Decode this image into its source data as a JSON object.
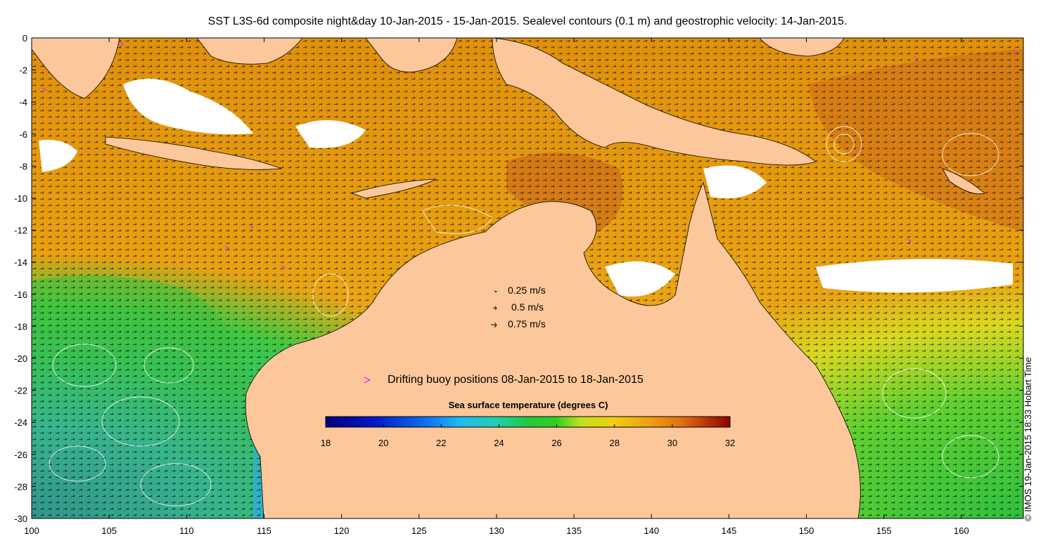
{
  "title": "SST L3S-6d composite night&day 10-Jan-2015 - 15-Jan-2015. Sealevel contours (0.1 m) and geostrophic velocity: 14-Jan-2015.",
  "credit": "© IMOS 19-Jan-2015 18:33 Hobart Time",
  "axes": {
    "x_ticks": [
      "100",
      "105",
      "110",
      "115",
      "120",
      "125",
      "130",
      "135",
      "140",
      "145",
      "150",
      "155",
      "160"
    ],
    "y_ticks": [
      "0",
      "-2",
      "-4",
      "-6",
      "-8",
      "-10",
      "-12",
      "-14",
      "-16",
      "-18",
      "-20",
      "-22",
      "-24",
      "-26",
      "-28",
      "-30"
    ],
    "lon_range": [
      100,
      164
    ],
    "lat_range": [
      -30,
      0
    ]
  },
  "velocity_legend": [
    {
      "label": "0.25 m/s"
    },
    {
      "label": "0.5 m/s"
    },
    {
      "label": "0.75 m/s"
    }
  ],
  "buoy_legend": {
    "symbol": ">",
    "label": "Drifting buoy positions 08-Jan-2015 to 18-Jan-2015",
    "color": "#d83cd8"
  },
  "colorbar": {
    "title": "Sea surface temperature (degrees C)",
    "ticks": [
      "18",
      "20",
      "22",
      "24",
      "26",
      "28",
      "30",
      "32"
    ],
    "range": [
      18,
      32
    ]
  },
  "colors": {
    "land": "#fcc89b",
    "cloud": "#ffffff",
    "warm": "#e08a10",
    "hot": "#c8641a",
    "mid": "#f0b020",
    "green": "#40c040",
    "cyan": "#30b0e0",
    "blue": "#2070e0",
    "contour": "#ffffff",
    "vector": "#000000"
  }
}
